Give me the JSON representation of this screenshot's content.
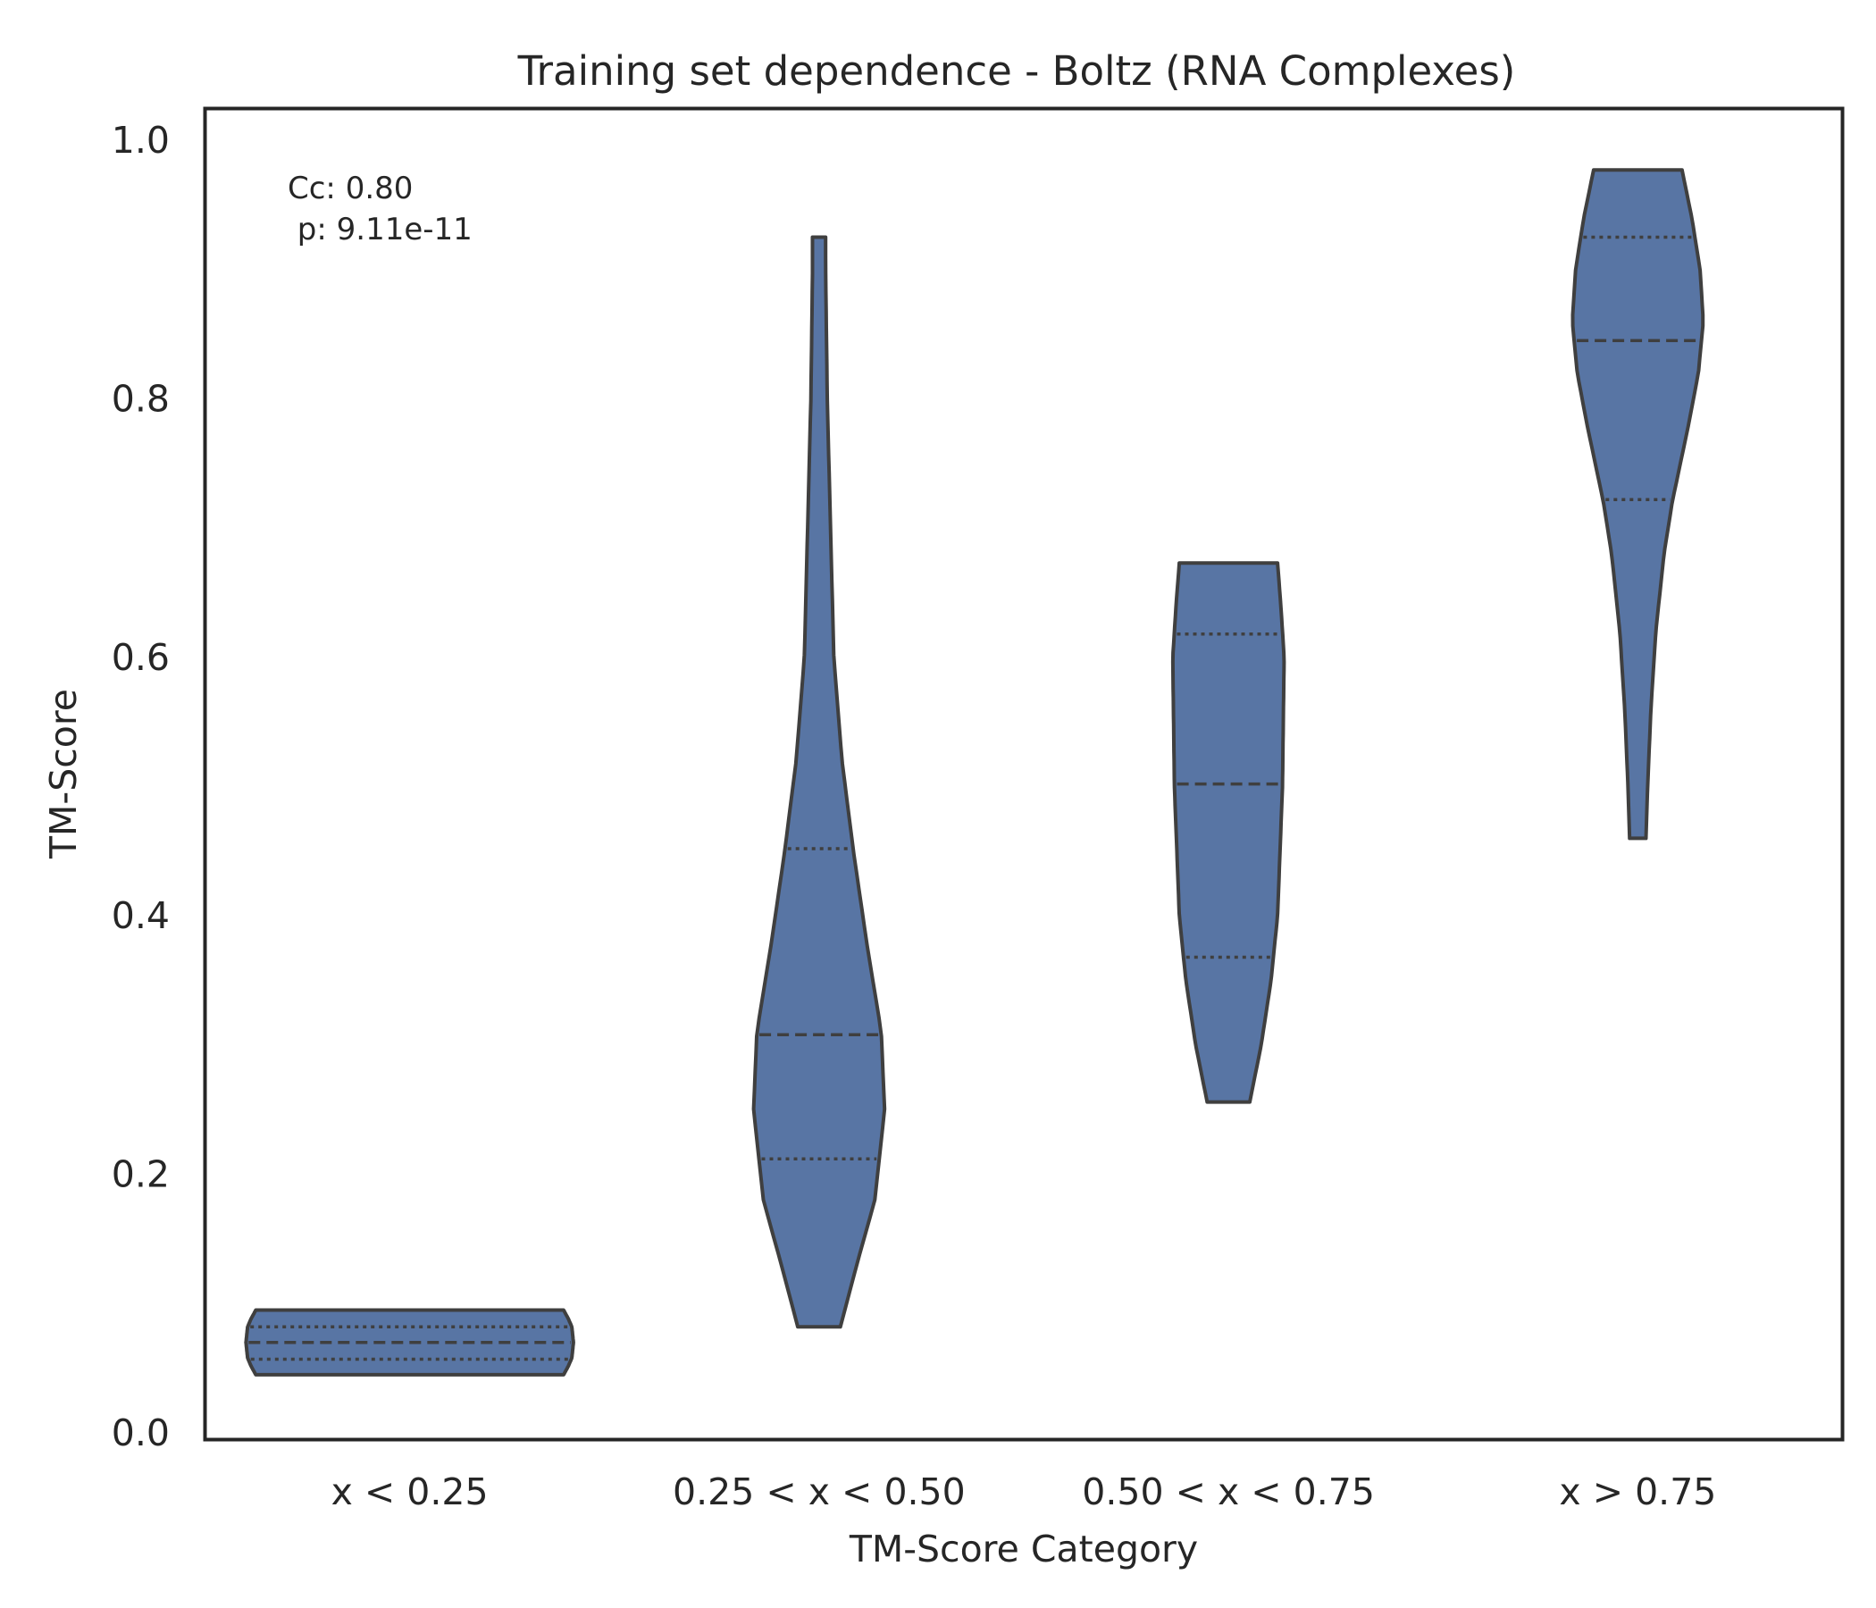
{
  "chart_data": {
    "type": "violin",
    "title": "Training set dependence - Boltz (RNA Complexes)",
    "xlabel": "TM-Score Category",
    "ylabel": "TM-Score",
    "ylim": [
      0.0,
      1.03
    ],
    "yticks": [
      {
        "value": 0.0,
        "label": "0.0"
      },
      {
        "value": 0.2,
        "label": "0.2"
      },
      {
        "value": 0.4,
        "label": "0.4"
      },
      {
        "value": 0.6,
        "label": "0.6"
      },
      {
        "value": 0.8,
        "label": "0.8"
      },
      {
        "value": 1.0,
        "label": "1.0"
      }
    ],
    "grid": false,
    "color": "#5875a4",
    "edge_color": "#3f3f3f",
    "annotation": {
      "line1": "Cc: 0.80",
      "line2": " p: 9.11e-11",
      "placement": "top-left"
    },
    "categories": [
      "x < 0.25",
      "0.25 < x < 0.50",
      "0.50 < x < 0.75",
      "x > 0.75"
    ],
    "violins": [
      {
        "category": "x < 0.25",
        "min": 0.045,
        "max": 0.095,
        "q1": 0.057,
        "median": 0.07,
        "q3": 0.082,
        "profile": [
          [
            0.045,
            0.94
          ],
          [
            0.052,
            0.97
          ],
          [
            0.058,
            0.99
          ],
          [
            0.07,
            1.0
          ],
          [
            0.082,
            0.99
          ],
          [
            0.088,
            0.97
          ],
          [
            0.095,
            0.94
          ]
        ]
      },
      {
        "category": "0.25 < x < 0.50",
        "min": 0.082,
        "max": 0.925,
        "q1": 0.212,
        "median": 0.308,
        "q3": 0.452,
        "profile": [
          [
            0.082,
            0.13
          ],
          [
            0.13,
            0.23
          ],
          [
            0.18,
            0.34
          ],
          [
            0.25,
            0.4
          ],
          [
            0.31,
            0.38
          ],
          [
            0.38,
            0.29
          ],
          [
            0.45,
            0.21
          ],
          [
            0.52,
            0.14
          ],
          [
            0.6,
            0.09
          ],
          [
            0.7,
            0.07
          ],
          [
            0.8,
            0.05
          ],
          [
            0.9,
            0.04
          ],
          [
            0.925,
            0.04
          ]
        ]
      },
      {
        "category": "0.50 < x < 0.75",
        "min": 0.256,
        "max": 0.673,
        "q1": 0.368,
        "median": 0.502,
        "q3": 0.618,
        "profile": [
          [
            0.256,
            0.13
          ],
          [
            0.3,
            0.2
          ],
          [
            0.35,
            0.26
          ],
          [
            0.4,
            0.3
          ],
          [
            0.5,
            0.33
          ],
          [
            0.6,
            0.34
          ],
          [
            0.64,
            0.32
          ],
          [
            0.673,
            0.3
          ]
        ]
      },
      {
        "category": "x > 0.75",
        "min": 0.46,
        "max": 0.977,
        "q1": 0.722,
        "median": 0.845,
        "q3": 0.925,
        "profile": [
          [
            0.46,
            0.05
          ],
          [
            0.5,
            0.06
          ],
          [
            0.56,
            0.08
          ],
          [
            0.62,
            0.11
          ],
          [
            0.68,
            0.16
          ],
          [
            0.72,
            0.21
          ],
          [
            0.78,
            0.31
          ],
          [
            0.82,
            0.37
          ],
          [
            0.86,
            0.4
          ],
          [
            0.9,
            0.38
          ],
          [
            0.94,
            0.33
          ],
          [
            0.977,
            0.27
          ]
        ]
      }
    ]
  }
}
